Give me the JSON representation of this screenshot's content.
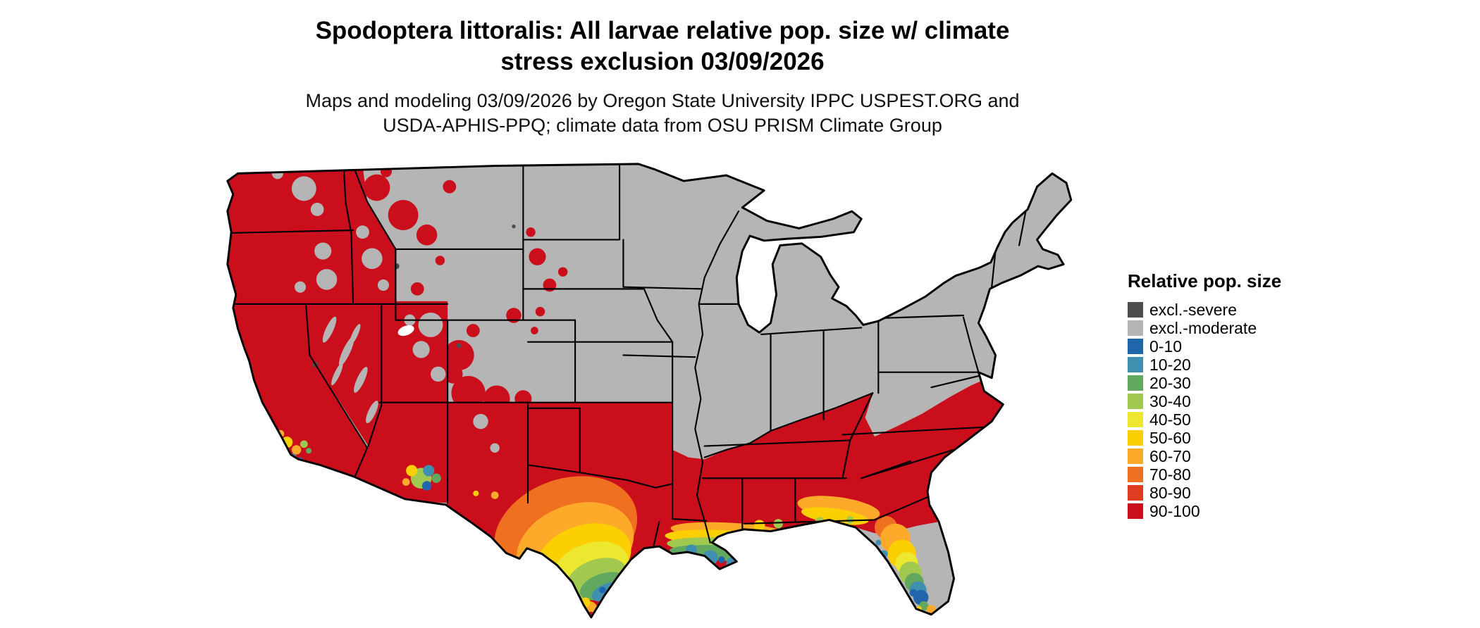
{
  "title": {
    "line1": "Spodoptera littoralis: All larvae relative pop. size w/ climate",
    "line2": "stress exclusion 03/09/2026"
  },
  "subtitle": {
    "line1": "Maps and modeling 03/09/2026 by Oregon State University IPPC USPEST.ORG and",
    "line2": "USDA-APHIS-PPQ; climate data from OSU PRISM Climate Group"
  },
  "legend": {
    "title": "Relative pop. size",
    "items": [
      {
        "label": "excl.-severe",
        "color": "#4d4d4d"
      },
      {
        "label": "excl.-moderate",
        "color": "#b5b5b5"
      },
      {
        "label": "0-10",
        "color": "#2166ac"
      },
      {
        "label": "10-20",
        "color": "#3f8fb0"
      },
      {
        "label": "20-30",
        "color": "#62a85e"
      },
      {
        "label": "30-40",
        "color": "#a2c94f"
      },
      {
        "label": "40-50",
        "color": "#ece830"
      },
      {
        "label": "50-60",
        "color": "#fccf03"
      },
      {
        "label": "60-70",
        "color": "#fda929"
      },
      {
        "label": "70-80",
        "color": "#f07022"
      },
      {
        "label": "80-90",
        "color": "#e03c22"
      },
      {
        "label": "90-100",
        "color": "#cb0e1c"
      }
    ]
  },
  "map": {
    "region": "Contiguous United States",
    "land_default_color": "#b5b5b5",
    "state_border_color": "#000000",
    "background_color": "#ffffff"
  }
}
